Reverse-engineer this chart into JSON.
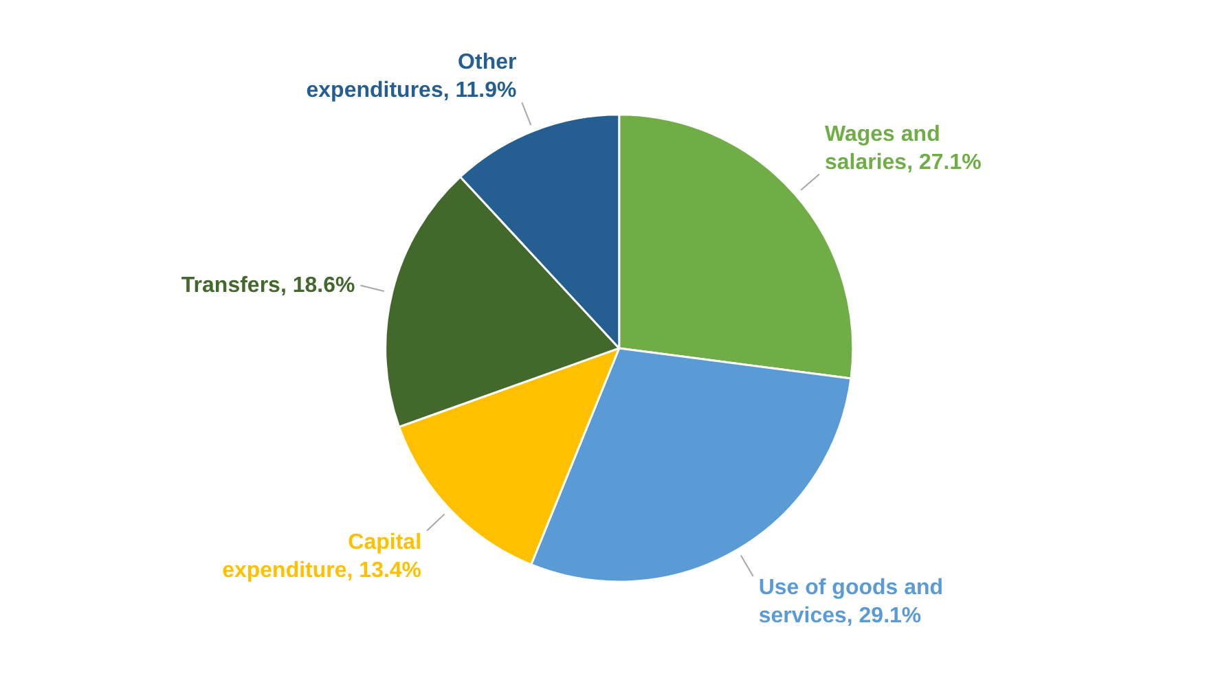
{
  "chart_data": {
    "type": "pie",
    "categories": [
      "Wages and salaries",
      "Use of goods and services",
      "Capital expenditure",
      "Transfers",
      "Other expenditures"
    ],
    "values": [
      27.1,
      29.1,
      13.4,
      18.6,
      11.9
    ],
    "value_labels": [
      "27.1%",
      "29.1%",
      "13.4%",
      "18.6%",
      "11.9%"
    ],
    "colors": [
      "#70ad47",
      "#5b9bd5",
      "#ffc000",
      "#43682b",
      "#255e91"
    ]
  }
}
